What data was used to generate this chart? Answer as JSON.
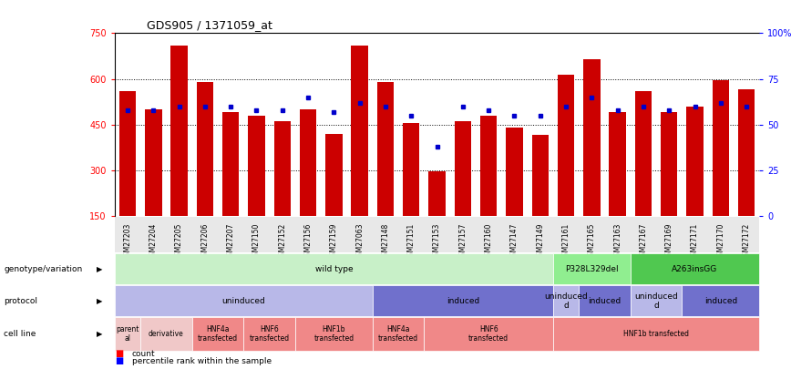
{
  "title": "GDS905 / 1371059_at",
  "samples": [
    "GSM27203",
    "GSM27204",
    "GSM27205",
    "GSM27206",
    "GSM27207",
    "GSM27150",
    "GSM27152",
    "GSM27156",
    "GSM27159",
    "GSM27063",
    "GSM27148",
    "GSM27151",
    "GSM27153",
    "GSM27157",
    "GSM27160",
    "GSM27147",
    "GSM27149",
    "GSM27161",
    "GSM27165",
    "GSM27163",
    "GSM27167",
    "GSM27169",
    "GSM27171",
    "GSM27170",
    "GSM27172"
  ],
  "counts": [
    560,
    500,
    710,
    590,
    490,
    480,
    460,
    500,
    420,
    710,
    590,
    455,
    295,
    460,
    480,
    440,
    415,
    615,
    665,
    490,
    560,
    490,
    510,
    595,
    565
  ],
  "percentiles": [
    58,
    58,
    60,
    60,
    60,
    58,
    58,
    65,
    57,
    62,
    60,
    55,
    38,
    60,
    58,
    55,
    55,
    60,
    65,
    58,
    60,
    58,
    60,
    62,
    60
  ],
  "bar_color": "#cc0000",
  "dot_color": "#0000cc",
  "ymin": 150,
  "ymax": 750,
  "yticks": [
    150,
    300,
    450,
    600,
    750
  ],
  "right_yticks": [
    0,
    25,
    50,
    75,
    100
  ],
  "right_yticklabels": [
    "0",
    "25",
    "50",
    "75",
    "100%"
  ],
  "grid_lines": [
    300,
    450,
    600
  ],
  "genotype_groups": [
    {
      "label": "wild type",
      "start": 0,
      "end": 17,
      "color": "#c8f0c8"
    },
    {
      "label": "P328L329del",
      "start": 17,
      "end": 20,
      "color": "#90ee90"
    },
    {
      "label": "A263insGG",
      "start": 20,
      "end": 25,
      "color": "#50c850"
    }
  ],
  "protocol_groups": [
    {
      "label": "uninduced",
      "start": 0,
      "end": 10,
      "color": "#b8b8e8"
    },
    {
      "label": "induced",
      "start": 10,
      "end": 17,
      "color": "#7070cc"
    },
    {
      "label": "uninduced\nd",
      "start": 17,
      "end": 18,
      "color": "#b8b8e8"
    },
    {
      "label": "induced",
      "start": 18,
      "end": 20,
      "color": "#7070cc"
    },
    {
      "label": "uninduced\nd",
      "start": 20,
      "end": 22,
      "color": "#b8b8e8"
    },
    {
      "label": "induced",
      "start": 22,
      "end": 25,
      "color": "#7070cc"
    }
  ],
  "cellline_groups": [
    {
      "label": "parent\nal",
      "start": 0,
      "end": 1,
      "color": "#f0c8c8"
    },
    {
      "label": "derivative",
      "start": 1,
      "end": 3,
      "color": "#f0c8c8"
    },
    {
      "label": "HNF4a\ntransfected",
      "start": 3,
      "end": 5,
      "color": "#f08888"
    },
    {
      "label": "HNF6\ntransfected",
      "start": 5,
      "end": 7,
      "color": "#f08888"
    },
    {
      "label": "HNF1b\ntransfected",
      "start": 7,
      "end": 10,
      "color": "#f08888"
    },
    {
      "label": "HNF4a\ntransfected",
      "start": 10,
      "end": 12,
      "color": "#f08888"
    },
    {
      "label": "HNF6\ntransfected",
      "start": 12,
      "end": 17,
      "color": "#f08888"
    },
    {
      "label": "HNF1b transfected",
      "start": 17,
      "end": 25,
      "color": "#f08888"
    }
  ],
  "background_color": "#ffffff"
}
